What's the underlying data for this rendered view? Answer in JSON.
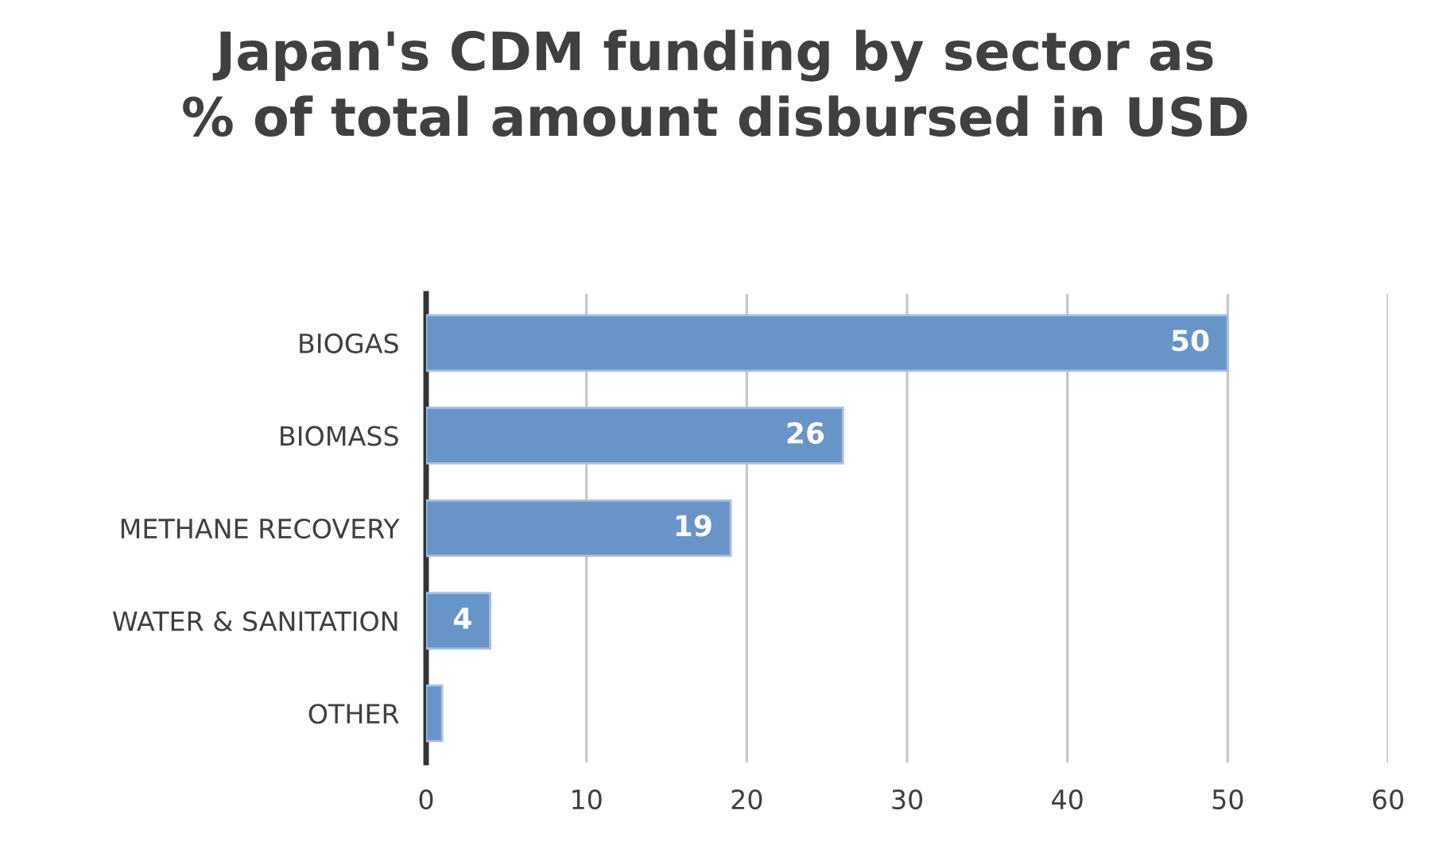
{
  "chart_data": {
    "type": "bar",
    "orientation": "horizontal",
    "title": "Japan's CDM funding by sector as\n% of total amount disbursed in USD",
    "categories": [
      "BIOGAS",
      "BIOMASS",
      "METHANE RECOVERY",
      "WATER & SANITATION",
      "OTHER"
    ],
    "values": [
      50,
      26,
      19,
      4,
      1
    ],
    "value_labels": [
      "50",
      "26",
      "19",
      "4",
      null
    ],
    "color": "#6994c7",
    "xlim": [
      0,
      60
    ],
    "xticks": [
      0,
      10,
      20,
      30,
      40,
      50,
      60
    ],
    "grid": "x"
  }
}
